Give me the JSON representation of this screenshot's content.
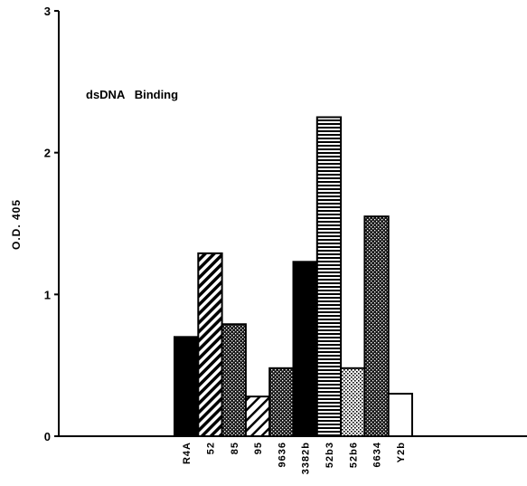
{
  "chart_data": {
    "type": "bar",
    "title": "",
    "annotation": "dsDNA   Binding",
    "xlabel": "",
    "ylabel": "O.D. 405",
    "ylim": [
      0,
      3
    ],
    "yticks": [
      "0",
      "1",
      "2",
      "3"
    ],
    "grid": false,
    "categories": [
      "R4A",
      "52",
      "85",
      "95",
      "9636",
      "3382b",
      "52b3",
      "52b6",
      "6634",
      "Y2b"
    ],
    "values": [
      0.7,
      1.29,
      0.79,
      0.28,
      0.48,
      1.23,
      2.25,
      0.48,
      1.55,
      0.3
    ],
    "fills": [
      "solid",
      "diagonal",
      "dots-dark",
      "diagonal-wide",
      "dots-dark",
      "solid",
      "horizontal",
      "dots-light",
      "dots-dark",
      "white"
    ]
  }
}
